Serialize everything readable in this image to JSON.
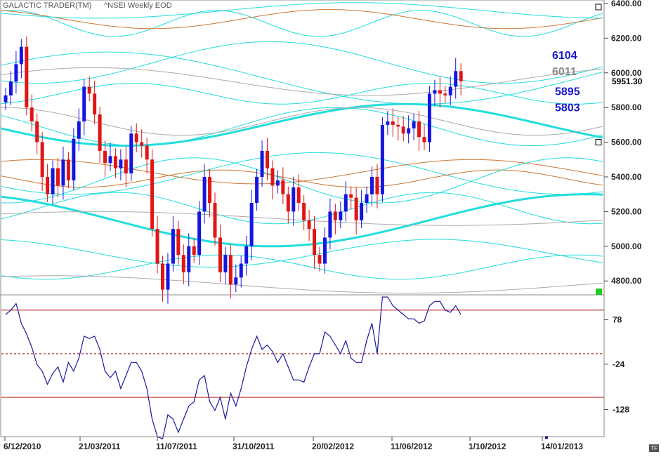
{
  "header": {
    "app": "GALACTIC TRADER(TM)",
    "symbol": "^NSEI Weekly EOD"
  },
  "corner_badge": "TF",
  "colors": {
    "up": "#1515e0",
    "down": "#e01515",
    "cyan": "#22dddd",
    "brown": "#cc7733",
    "gray": "#aaaaaa",
    "ind": "#1a1aa0",
    "red_line": "#aa0000",
    "label_blue": "#1818cc",
    "label_gray": "#888888"
  },
  "chart_data": [
    {
      "type": "candlestick",
      "title": "^NSEI Weekly EOD",
      "ylim": [
        4720,
        6420
      ],
      "y_ticks": [
        "6400.00",
        "6200.00",
        "6000.00",
        "5800.00",
        "5600.00",
        "5400.00",
        "5200.00",
        "5000.00",
        "4800.00"
      ],
      "x_ticks": [
        "6/12/2010",
        "21/03/2011",
        "11/07/2011",
        "31/10/2011",
        "20/02/2012",
        "11/06/2012",
        "1/10/2012",
        "14/01/2013"
      ],
      "last_price": "5951.30",
      "level_labels": [
        {
          "text": "6104",
          "value": 6104,
          "color": "blue"
        },
        {
          "text": "6011",
          "value": 6011,
          "color": "gray"
        },
        {
          "text": "5895",
          "value": 5895,
          "color": "blue"
        },
        {
          "text": "5803",
          "value": 5803,
          "color": "blue"
        }
      ],
      "closes": [
        5870,
        5950,
        6050,
        6150,
        5800,
        5720,
        5600,
        5400,
        5300,
        5450,
        5350,
        5500,
        5380,
        5620,
        5720,
        5920,
        5880,
        5760,
        5550,
        5480,
        5520,
        5450,
        5500,
        5420,
        5650,
        5600,
        5580,
        5500,
        5100,
        4900,
        4750,
        4900,
        5100,
        4950,
        4850,
        5000,
        4950,
        5200,
        5400,
        5250,
        5050,
        4850,
        4950,
        4780,
        4820,
        4900,
        5000,
        5250,
        5400,
        5550,
        5450,
        5350,
        5380,
        5300,
        5200,
        5340,
        5250,
        5150,
        5100,
        4950,
        4900,
        5050,
        5200,
        5150,
        5200,
        5300,
        5280,
        5150,
        5250,
        5300,
        5400,
        5300,
        5700,
        5720,
        5700,
        5690,
        5650,
        5680,
        5720,
        5630,
        5600,
        5880,
        5900,
        5880,
        5870,
        5920,
        6010,
        5951.3
      ],
      "indicator": {
        "label": "oscillator",
        "y_ticks": [
          "78",
          "-24",
          "-128"
        ],
        "ylim": [
          -190,
          135
        ],
        "upper_band": 100,
        "mid_band": 0,
        "lower_band": -100,
        "values": [
          90,
          100,
          115,
          70,
          45,
          15,
          -25,
          -40,
          -70,
          -45,
          -30,
          -65,
          -20,
          -40,
          -10,
          40,
          35,
          40,
          10,
          -40,
          -55,
          -40,
          -80,
          -50,
          -20,
          -20,
          -40,
          -80,
          -150,
          -190,
          -195,
          -140,
          -150,
          -180,
          -150,
          -120,
          -110,
          -60,
          -50,
          -110,
          -130,
          -100,
          -150,
          -90,
          -120,
          -80,
          -30,
          10,
          40,
          10,
          20,
          5,
          -20,
          0,
          -30,
          -60,
          -60,
          -65,
          -30,
          0,
          0,
          50,
          40,
          20,
          0,
          30,
          -10,
          -20,
          -20,
          30,
          70,
          0,
          130,
          130,
          110,
          100,
          90,
          80,
          80,
          70,
          75,
          110,
          120,
          120,
          100,
          95,
          110,
          90
        ]
      },
      "cycles": [
        {
          "c": 5970,
          "a": 150,
          "p": 160,
          "ph": 0.5,
          "color": "cyan"
        },
        {
          "c": 6285,
          "a": 75,
          "p": 52,
          "ph": 1.2,
          "color": "cyan"
        },
        {
          "c": 6310,
          "a": 55,
          "p": 90,
          "ph": 2.0,
          "color": "brown"
        },
        {
          "c": 6360,
          "a": 45,
          "p": 130,
          "ph": 3.5,
          "color": "cyan"
        },
        {
          "c": 6060,
          "a": 120,
          "p": 118,
          "ph": 4.2,
          "color": "cyan"
        },
        {
          "c": 5950,
          "a": 80,
          "p": 140,
          "ph": 0.5,
          "color": "gray"
        },
        {
          "c": 5880,
          "a": 60,
          "p": 75,
          "ph": 5.0,
          "color": "cyan"
        },
        {
          "c": 5700,
          "a": 120,
          "p": 142,
          "ph": 3.3,
          "color": "cyan",
          "thick": true
        },
        {
          "c": 5690,
          "a": 110,
          "p": 100,
          "ph": 2.5,
          "color": "cyan"
        },
        {
          "c": 5720,
          "a": 80,
          "p": 90,
          "ph": 1.5,
          "color": "gray"
        },
        {
          "c": 5420,
          "a": 120,
          "p": 125,
          "ph": 3.8,
          "color": "cyan"
        },
        {
          "c": 5430,
          "a": 70,
          "p": 110,
          "ph": 1.0,
          "color": "brown"
        },
        {
          "c": 5390,
          "a": 50,
          "p": 70,
          "ph": 2.8,
          "color": "brown"
        },
        {
          "c": 5380,
          "a": 130,
          "p": 95,
          "ph": 4.6,
          "color": "cyan"
        },
        {
          "c": 5150,
          "a": 150,
          "p": 160,
          "ph": 2.0,
          "color": "cyan",
          "thick": true
        },
        {
          "c": 5220,
          "a": 90,
          "p": 80,
          "ph": 5.5,
          "color": "cyan"
        },
        {
          "c": 5160,
          "a": 40,
          "p": 180,
          "ph": 0.7,
          "color": "gray"
        },
        {
          "c": 4960,
          "a": 80,
          "p": 115,
          "ph": 1.8,
          "color": "cyan"
        },
        {
          "c": 4880,
          "a": 70,
          "p": 90,
          "ph": 3.9,
          "color": "cyan"
        },
        {
          "c": 4780,
          "a": 50,
          "p": 180,
          "ph": 1.1,
          "color": "gray"
        }
      ]
    }
  ]
}
